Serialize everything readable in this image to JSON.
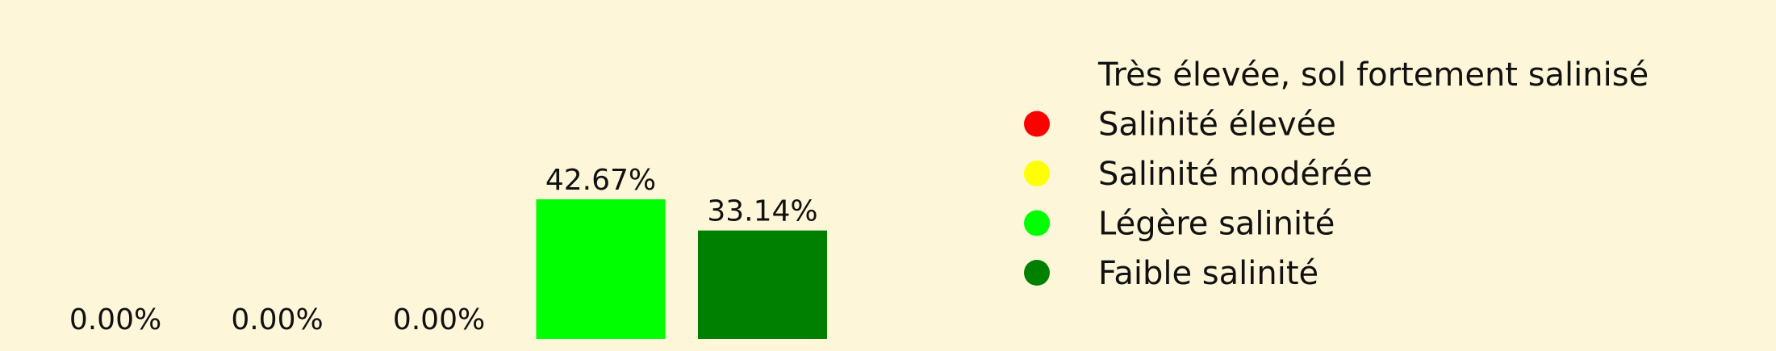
{
  "chart_data": {
    "type": "bar",
    "categories": [
      "Très élevée, sol fortement salinisé",
      "Salinité élevée",
      "Salinité modérée",
      "Légère salinité",
      "Faible salinité"
    ],
    "values": [
      0.0,
      0.0,
      0.0,
      42.67,
      33.14
    ],
    "value_labels": [
      "0.00%",
      "0.00%",
      "0.00%",
      "42.67%",
      "33.14%"
    ],
    "colors": [
      "#8b0000",
      "#ff0000",
      "#ffff00",
      "#00ff00",
      "#008000"
    ],
    "ylim": [
      0,
      100
    ],
    "grid": false,
    "legend_position": "right",
    "legend": [
      {
        "label": "Très élevée, sol fortement salinisé",
        "color": "#8b0000"
      },
      {
        "label": "Salinité élevée",
        "color": "#ff0000"
      },
      {
        "label": "Salinité modérée",
        "color": "#ffff00"
      },
      {
        "label": "Légère salinité",
        "color": "#00ff00"
      },
      {
        "label": "Faible salinité",
        "color": "#008000"
      }
    ]
  }
}
